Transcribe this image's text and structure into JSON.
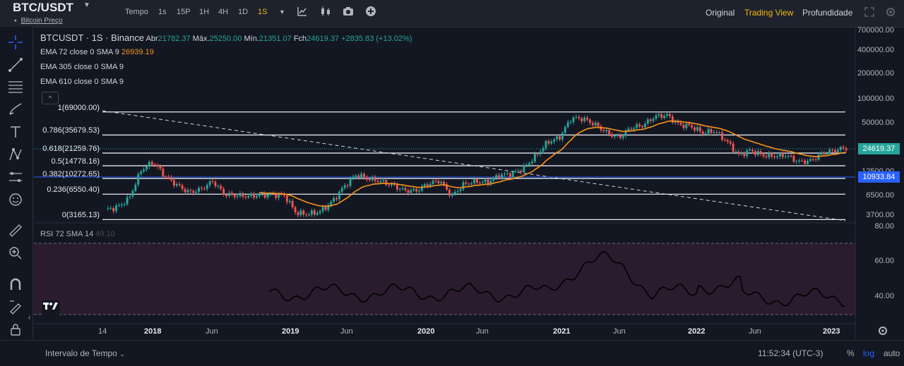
{
  "header": {
    "pair": "BTC/USDT",
    "sub_label": "Bitcoin Preço",
    "timeframes": [
      "Tempo",
      "1s",
      "15P",
      "1H",
      "4H",
      "1D",
      "1S"
    ],
    "active_timeframe": "1S",
    "views": [
      "Original",
      "Trading View",
      "Profundidade"
    ],
    "active_view": "Trading View"
  },
  "legend": {
    "symbol_line": "BTCUSDT · 1S · Binance",
    "open_label": "Abr",
    "open": "21782.37",
    "high_label": "Máx.",
    "high": "25250.00",
    "low_label": "Mín.",
    "low": "21351.07",
    "close_label": "Fch",
    "close": "24619.37",
    "change": "+2835.83 (+13.02%)",
    "ema1": "EMA 72 close 0 SMA 9",
    "ema1_value": "26939.19",
    "ema2": "EMA 305 close 0 SMA 9",
    "ema3": "EMA 610 close 0 SMA 9",
    "collapse": "^"
  },
  "fib_levels": [
    {
      "label": "1(69000.00)",
      "price": 69000
    },
    {
      "label": "0.786(35679.53)",
      "price": 35679.53
    },
    {
      "label": "0.618(21259.76)",
      "price": 21259.76
    },
    {
      "label": "0.5(14778.16)",
      "price": 14778.16
    },
    {
      "label": "0.382(10272.65)",
      "price": 10272.65
    },
    {
      "label": "0.236(6550.40)",
      "price": 6550.4
    },
    {
      "label": "0(3165.13)",
      "price": 3165.13
    }
  ],
  "price_axis": [
    "700000.00",
    "400000.00",
    "200000.00",
    "100000.00",
    "50000.00",
    "12500.00",
    "6500.00",
    "3700.00"
  ],
  "price_tags": {
    "last": "24619.37",
    "last_color": "#26a69a",
    "line": "10933.84",
    "line_color": "#2962ff"
  },
  "rsi": {
    "label": "RSI 72 SMA 14",
    "value": "49.10",
    "axis": [
      "80.00",
      "60.00",
      "40.00"
    ]
  },
  "time_axis": [
    {
      "label": "14",
      "bold": false
    },
    {
      "label": "2018",
      "bold": true
    },
    {
      "label": "Jun",
      "bold": false
    },
    {
      "label": "2019",
      "bold": true
    },
    {
      "label": "Jun",
      "bold": false
    },
    {
      "label": "2020",
      "bold": true
    },
    {
      "label": "Jun",
      "bold": false
    },
    {
      "label": "2021",
      "bold": true
    },
    {
      "label": "Jun",
      "bold": false
    },
    {
      "label": "2022",
      "bold": true
    },
    {
      "label": "Jun",
      "bold": false
    },
    {
      "label": "2023",
      "bold": true
    }
  ],
  "bottom": {
    "interval": "Intervalo de Tempo",
    "time": "11:52:34 (UTC-3)",
    "percent": "%",
    "log": "log",
    "auto": "auto"
  },
  "colors": {
    "up": "#26a69a",
    "down": "#ef5350",
    "ema": "#f7931a",
    "bg": "#131722",
    "accent": "#f0b90b",
    "rsi_fill": "#2a1c2e"
  },
  "chart_data": {
    "type": "candlestick",
    "scale": "log",
    "ylim": [
      3000,
      760000
    ],
    "close_series": [
      4200,
      4500,
      5800,
      13000,
      16500,
      11000,
      8500,
      6900,
      7500,
      9500,
      6500,
      6300,
      6200,
      6400,
      6500,
      6300,
      3800,
      3700,
      4000,
      5300,
      8200,
      11500,
      10200,
      9500,
      8500,
      7300,
      7200,
      8800,
      9700,
      6200,
      8700,
      9400,
      9200,
      11300,
      11700,
      13800,
      19400,
      29000,
      33000,
      58000,
      57000,
      48000,
      38000,
      33000,
      44000,
      47000,
      61000,
      63000,
      48000,
      46000,
      38000,
      40000,
      30000,
      20000,
      23000,
      20000,
      19500,
      20000,
      16500,
      17000,
      21000,
      23000,
      24619
    ]
  }
}
